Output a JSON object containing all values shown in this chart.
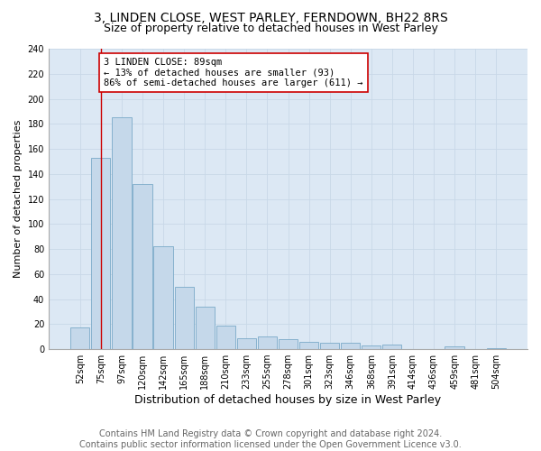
{
  "title": "3, LINDEN CLOSE, WEST PARLEY, FERNDOWN, BH22 8RS",
  "subtitle": "Size of property relative to detached houses in West Parley",
  "xlabel": "Distribution of detached houses by size in West Parley",
  "ylabel": "Number of detached properties",
  "footer_line1": "Contains HM Land Registry data © Crown copyright and database right 2024.",
  "footer_line2": "Contains public sector information licensed under the Open Government Licence v3.0.",
  "bar_labels": [
    "52sqm",
    "75sqm",
    "97sqm",
    "120sqm",
    "142sqm",
    "165sqm",
    "188sqm",
    "210sqm",
    "233sqm",
    "255sqm",
    "278sqm",
    "301sqm",
    "323sqm",
    "346sqm",
    "368sqm",
    "391sqm",
    "414sqm",
    "436sqm",
    "459sqm",
    "481sqm",
    "504sqm"
  ],
  "bar_values": [
    17,
    153,
    185,
    132,
    82,
    50,
    34,
    19,
    9,
    10,
    8,
    6,
    5,
    5,
    3,
    4,
    0,
    0,
    2,
    0,
    1
  ],
  "bar_color": "#c5d8ea",
  "bar_edge_color": "#7aaac8",
  "annotation_text": "3 LINDEN CLOSE: 89sqm\n← 13% of detached houses are smaller (93)\n86% of semi-detached houses are larger (611) →",
  "vline_x": 1,
  "vline_color": "#cc0000",
  "annotation_box_facecolor": "#ffffff",
  "annotation_box_edgecolor": "#cc0000",
  "ylim": [
    0,
    240
  ],
  "yticks": [
    0,
    20,
    40,
    60,
    80,
    100,
    120,
    140,
    160,
    180,
    200,
    220,
    240
  ],
  "grid_color": "#c8d8e8",
  "background_color": "#dce8f4",
  "title_fontsize": 10,
  "subtitle_fontsize": 9,
  "xlabel_fontsize": 9,
  "ylabel_fontsize": 8,
  "tick_fontsize": 7,
  "annotation_fontsize": 7.5,
  "footer_fontsize": 7
}
